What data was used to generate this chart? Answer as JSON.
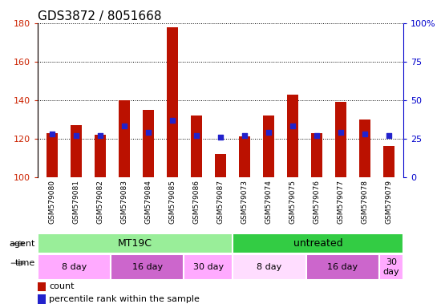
{
  "title": "GDS3872 / 8051668",
  "samples": [
    "GSM579080",
    "GSM579081",
    "GSM579082",
    "GSM579083",
    "GSM579084",
    "GSM579085",
    "GSM579086",
    "GSM579087",
    "GSM579073",
    "GSM579074",
    "GSM579075",
    "GSM579076",
    "GSM579077",
    "GSM579078",
    "GSM579079"
  ],
  "counts": [
    123,
    127,
    122,
    140,
    135,
    178,
    132,
    112,
    121,
    132,
    143,
    123,
    139,
    130,
    116
  ],
  "percentile_ranks": [
    28,
    27,
    27,
    33,
    29,
    37,
    27,
    26,
    27,
    29,
    33,
    27,
    29,
    28,
    27
  ],
  "ylim_left": [
    100,
    180
  ],
  "ylim_right": [
    0,
    100
  ],
  "yticks_left": [
    100,
    120,
    140,
    160,
    180
  ],
  "yticks_right": [
    0,
    25,
    50,
    75,
    100
  ],
  "ytick_labels_right": [
    "0",
    "25",
    "50",
    "75",
    "100%"
  ],
  "bar_color": "#bb1100",
  "dot_color": "#2222cc",
  "agent_groups": [
    {
      "label": "MT19C",
      "start": 0,
      "end": 8,
      "color": "#99ee99"
    },
    {
      "label": "untreated",
      "start": 8,
      "end": 15,
      "color": "#33cc44"
    }
  ],
  "time_groups": [
    {
      "label": "8 day",
      "start": 0,
      "end": 3,
      "color": "#ffaaff"
    },
    {
      "label": "16 day",
      "start": 3,
      "end": 6,
      "color": "#cc66cc"
    },
    {
      "label": "30 day",
      "start": 6,
      "end": 8,
      "color": "#ffaaff"
    },
    {
      "label": "8 day",
      "start": 8,
      "end": 11,
      "color": "#ffddff"
    },
    {
      "label": "16 day",
      "start": 11,
      "end": 14,
      "color": "#cc66cc"
    },
    {
      "label": "30\nday",
      "start": 14,
      "end": 15,
      "color": "#ffaaff"
    }
  ],
  "legend_count_label": "count",
  "legend_pct_label": "percentile rank within the sample",
  "plot_bg": "#ffffff",
  "tick_bg": "#dddddd",
  "tick_label_color_left": "#cc2200",
  "tick_label_color_right": "#0000cc",
  "title_fontsize": 11,
  "bar_width": 0.45
}
